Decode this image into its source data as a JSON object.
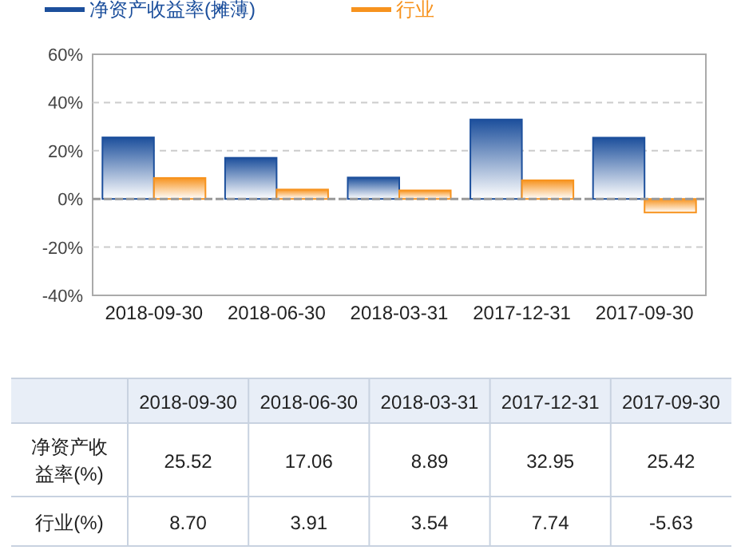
{
  "chart_data": {
    "type": "bar",
    "categories": [
      "2018-09-30",
      "2018-06-30",
      "2018-03-31",
      "2017-12-31",
      "2017-09-30"
    ],
    "series": [
      {
        "name": "净资产收益率(摊薄)",
        "color": "#1c4f9c",
        "values": [
          25.52,
          17.06,
          8.89,
          32.95,
          25.42
        ],
        "value_labels": [
          "25.52",
          "17.06",
          "8.89",
          "32.95",
          "25.42"
        ]
      },
      {
        "name": "行业",
        "color": "#f7931e",
        "values": [
          8.7,
          3.91,
          3.54,
          7.74,
          -5.63
        ],
        "value_labels": [
          "8.70",
          "3.91",
          "3.54",
          "7.74",
          "-5.63"
        ]
      }
    ],
    "ylim": [
      -40,
      60
    ],
    "yticks": [
      {
        "value": -40,
        "label": "-40%"
      },
      {
        "value": -20,
        "label": "-20%"
      },
      {
        "value": 0,
        "label": "0%"
      },
      {
        "value": 20,
        "label": "20%"
      },
      {
        "value": 40,
        "label": "40%"
      },
      {
        "value": 60,
        "label": "60%"
      }
    ],
    "ref_lines": [
      {
        "axis": "y",
        "value": 0,
        "color": "#999999",
        "line_style": "dashed"
      }
    ],
    "grid": "y",
    "legend": "top left",
    "annotations": [
      "净资产收益率(%)",
      "行业(%)"
    ]
  }
}
